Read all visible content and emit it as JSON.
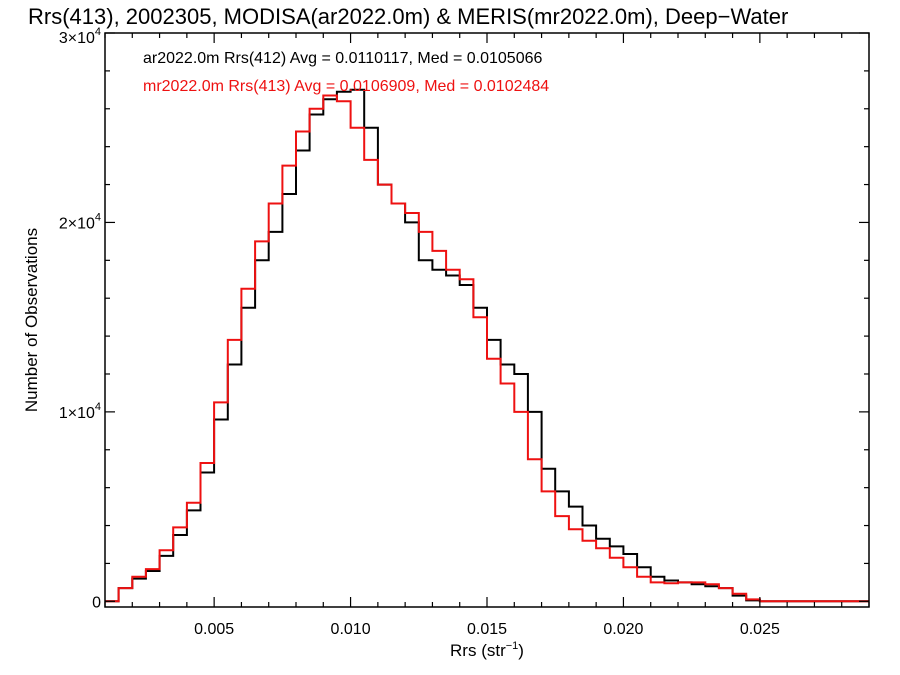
{
  "chart_data": {
    "type": "line",
    "title": "Rrs(413), 2002305, MODISA(ar2022.0m) & MERIS(mr2022.0m), Deep−Water",
    "xlabel": "Rrs (str",
    "xlabel_sup": "−1",
    "xlabel_end": ")",
    "ylabel": "Number of Observations",
    "xlim": [
      0.001,
      0.029
    ],
    "ylim": [
      -300,
      30000
    ],
    "x_ticks": [
      {
        "value": 0.005,
        "label": "0.005"
      },
      {
        "value": 0.01,
        "label": "0.010"
      },
      {
        "value": 0.015,
        "label": "0.015"
      },
      {
        "value": 0.02,
        "label": "0.020"
      },
      {
        "value": 0.025,
        "label": "0.025"
      }
    ],
    "y_ticks": [
      {
        "value": 0,
        "base": "0",
        "sup": ""
      },
      {
        "value": 10000,
        "base": "1×10",
        "sup": "4"
      },
      {
        "value": 20000,
        "base": "2×10",
        "sup": "4"
      },
      {
        "value": 30000,
        "base": "3×10",
        "sup": "4"
      }
    ],
    "legend_position": "top-left",
    "series": [
      {
        "label": "ar2022.0m Rrs(412) Avg = 0.0110117, Med = 0.0105066",
        "color": "#000000",
        "x": [
          0.001,
          0.0015,
          0.002,
          0.0025,
          0.003,
          0.0035,
          0.004,
          0.0045,
          0.005,
          0.0055,
          0.006,
          0.0065,
          0.007,
          0.0075,
          0.008,
          0.0085,
          0.009,
          0.0095,
          0.01,
          0.0105,
          0.011,
          0.0115,
          0.012,
          0.0125,
          0.013,
          0.0135,
          0.014,
          0.0145,
          0.015,
          0.0155,
          0.016,
          0.0165,
          0.017,
          0.0175,
          0.018,
          0.0185,
          0.019,
          0.0195,
          0.02,
          0.0205,
          0.021,
          0.0215,
          0.022,
          0.0225,
          0.023,
          0.0235,
          0.024,
          0.0245,
          0.025,
          0.0255,
          0.026,
          0.027,
          0.028,
          0.029
        ],
        "y": [
          0,
          700,
          1200,
          1600,
          2400,
          3500,
          4800,
          6800,
          9600,
          12500,
          15500,
          18000,
          19500,
          21500,
          23800,
          25700,
          26500,
          26900,
          27000,
          25000,
          22000,
          21000,
          20000,
          18000,
          17500,
          17200,
          16700,
          15500,
          13800,
          12500,
          12000,
          10000,
          7000,
          5800,
          5000,
          4000,
          3300,
          2900,
          2500,
          1800,
          1300,
          1100,
          1000,
          900,
          800,
          700,
          300,
          50,
          0,
          0,
          0,
          0,
          0,
          0
        ]
      },
      {
        "label": "mr2022.0m Rrs(413) Avg = 0.0106909, Med = 0.0102484",
        "color": "#ee1111",
        "x": [
          0.001,
          0.0015,
          0.002,
          0.0025,
          0.003,
          0.0035,
          0.004,
          0.0045,
          0.005,
          0.0055,
          0.006,
          0.0065,
          0.007,
          0.0075,
          0.008,
          0.0085,
          0.009,
          0.0095,
          0.01,
          0.0105,
          0.011,
          0.0115,
          0.012,
          0.0125,
          0.013,
          0.0135,
          0.014,
          0.0145,
          0.015,
          0.0155,
          0.016,
          0.0165,
          0.017,
          0.0175,
          0.018,
          0.0185,
          0.019,
          0.0195,
          0.02,
          0.0205,
          0.021,
          0.0215,
          0.022,
          0.0225,
          0.023,
          0.0235,
          0.024,
          0.0245,
          0.025,
          0.0255,
          0.026,
          0.027,
          0.028,
          0.029
        ],
        "y": [
          0,
          700,
          1300,
          1700,
          2700,
          3900,
          5200,
          7300,
          10500,
          13800,
          16500,
          19000,
          21000,
          23000,
          24800,
          26000,
          26700,
          26400,
          25000,
          23300,
          22000,
          21000,
          20500,
          19500,
          18500,
          17500,
          17000,
          15000,
          12800,
          11500,
          10000,
          7500,
          5800,
          4500,
          3800,
          3200,
          2800,
          2300,
          1800,
          1300,
          1000,
          950,
          1000,
          1000,
          900,
          700,
          400,
          100,
          0,
          0,
          0,
          0,
          0,
          0
        ]
      }
    ]
  }
}
